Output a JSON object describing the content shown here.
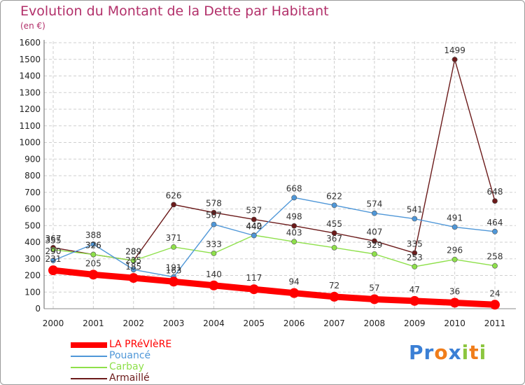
{
  "chart_data": {
    "type": "line",
    "title": "Evolution du Montant de la Dette par Habitant",
    "unit": "(en €)",
    "x": [
      "2000",
      "2001",
      "2002",
      "2003",
      "2004",
      "2005",
      "2006",
      "2007",
      "2008",
      "2009",
      "2010",
      "2011"
    ],
    "ylim": [
      0,
      1600
    ],
    "yticks": [
      0,
      100,
      200,
      300,
      400,
      500,
      600,
      700,
      800,
      900,
      1000,
      1100,
      1200,
      1300,
      1400,
      1500,
      1600
    ],
    "grid": true,
    "legend_position": "bottom-left",
    "series": [
      {
        "name": "LA PRéVIèRE",
        "color": "#ff0000",
        "values": [
          231,
          205,
          185,
          163,
          140,
          117,
          94,
          72,
          57,
          47,
          36,
          24
        ]
      },
      {
        "name": "Pouancé",
        "color": "#4f97d8",
        "values": [
          290,
          388,
          235,
          191,
          507,
          440,
          668,
          622,
          574,
          541,
          491,
          464
        ]
      },
      {
        "name": "Carbay",
        "color": "#8ee04a",
        "values": [
          355,
          326,
          289,
          371,
          333,
          442,
          403,
          367,
          329,
          253,
          296,
          258
        ]
      },
      {
        "name": "Armaillé",
        "color": "#6b1a1a",
        "values": [
          367,
          326,
          289,
          626,
          578,
          537,
          498,
          455,
          407,
          335,
          1499,
          648
        ]
      }
    ]
  },
  "logo": {
    "letters": [
      {
        "ch": "P",
        "color": "#3a7fd5"
      },
      {
        "ch": "r",
        "color": "#3a7fd5"
      },
      {
        "ch": "o",
        "color": "#f07d1a"
      },
      {
        "ch": "x",
        "color": "#3a7fd5"
      },
      {
        "ch": "i",
        "color": "#8cc63f"
      },
      {
        "ch": "t",
        "color": "#f07d1a"
      },
      {
        "ch": "i",
        "color": "#8cc63f"
      }
    ]
  }
}
